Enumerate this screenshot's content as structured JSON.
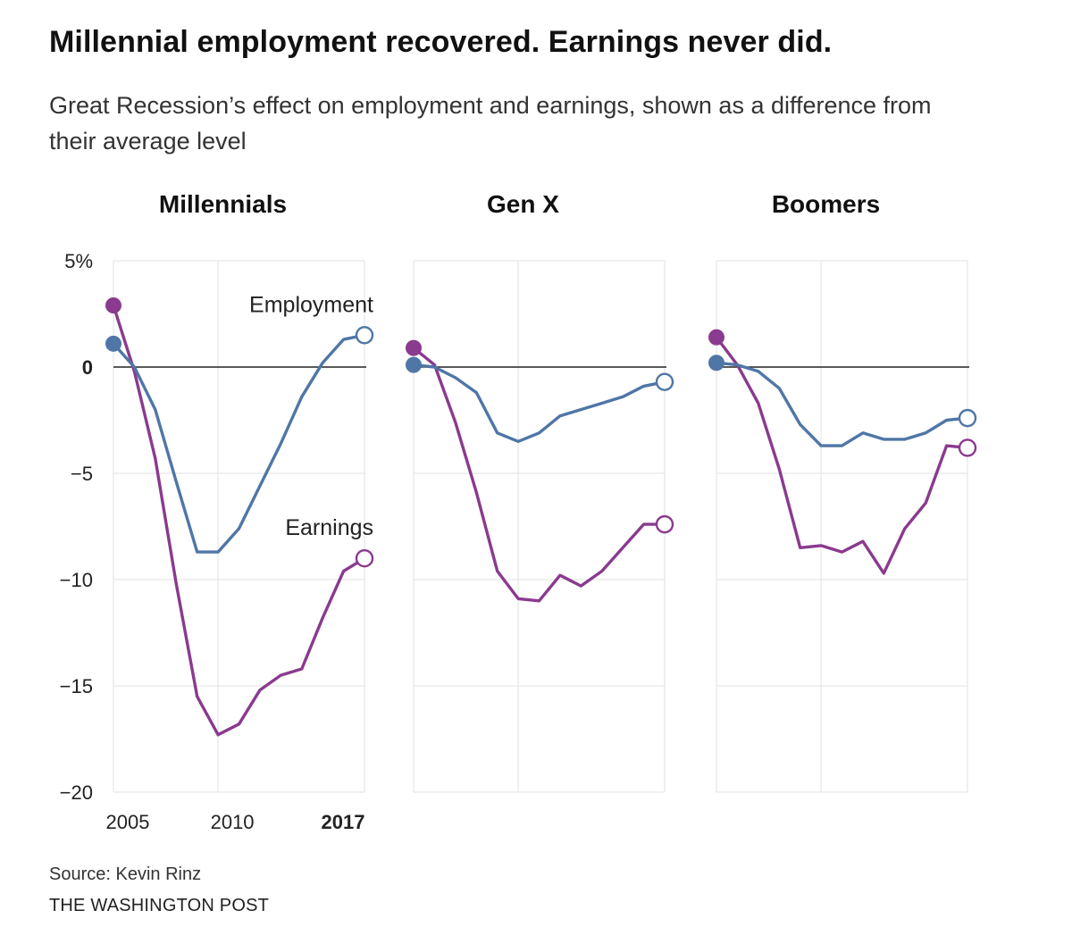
{
  "header": {
    "title": "Millennial employment recovered. Earnings never did.",
    "subtitle": "Great Recession’s effect on employment and earnings, shown as a difference from their average level"
  },
  "footer": {
    "source": "Source: Kevin Rinz",
    "brand": "THE WASHINGTON POST"
  },
  "colors": {
    "employment": "#4f76a6",
    "earnings": "#8a3a8f",
    "grid": "#e6e6e6",
    "zero_line": "#222222"
  },
  "chart_data": {
    "type": "line",
    "title": "Millennial employment recovered. Earnings never did.",
    "subtitle": "Great Recession’s effect on employment and earnings, shown as a difference from their average level",
    "ylim": [
      -20,
      5
    ],
    "yticks": [
      {
        "value": 5,
        "label": "5%",
        "bold": false
      },
      {
        "value": 0,
        "label": "0",
        "bold": true
      },
      {
        "value": -5,
        "label": "−5",
        "bold": false
      },
      {
        "value": -10,
        "label": "−10",
        "bold": false
      },
      {
        "value": -15,
        "label": "−15",
        "bold": false
      },
      {
        "value": -20,
        "label": "−20",
        "bold": false
      }
    ],
    "xlim": [
      2005,
      2017
    ],
    "xticks": [
      {
        "value": 2005,
        "label": "2005",
        "bold": false
      },
      {
        "value": 2010,
        "label": "2010",
        "bold": false
      },
      {
        "value": 2017,
        "label": "2017",
        "bold": true
      }
    ],
    "x": [
      2005,
      2006,
      2007,
      2008,
      2009,
      2010,
      2011,
      2012,
      2013,
      2014,
      2015,
      2016,
      2017
    ],
    "series_labels": {
      "employment": "Employment",
      "earnings": "Earnings"
    },
    "panels": [
      {
        "name": "Millennials",
        "series": [
          {
            "name": "Employment",
            "values": [
              1.1,
              0.0,
              -2.0,
              -5.4,
              -8.7,
              -8.7,
              -7.6,
              -5.6,
              -3.6,
              -1.4,
              0.2,
              1.3,
              1.5
            ]
          },
          {
            "name": "Earnings",
            "values": [
              2.9,
              -0.2,
              -4.3,
              -10.2,
              -15.5,
              -17.3,
              -16.8,
              -15.2,
              -14.5,
              -14.2,
              -11.8,
              -9.6,
              -9.0
            ]
          }
        ]
      },
      {
        "name": "Gen X",
        "series": [
          {
            "name": "Employment",
            "values": [
              0.1,
              0.0,
              -0.5,
              -1.2,
              -3.1,
              -3.5,
              -3.1,
              -2.3,
              -2.0,
              -1.7,
              -1.4,
              -0.9,
              -0.7
            ]
          },
          {
            "name": "Earnings",
            "values": [
              0.9,
              0.1,
              -2.6,
              -5.9,
              -9.6,
              -10.9,
              -11.0,
              -9.8,
              -10.3,
              -9.6,
              -8.5,
              -7.4,
              -7.4
            ]
          }
        ]
      },
      {
        "name": "Boomers",
        "series": [
          {
            "name": "Employment",
            "values": [
              0.2,
              0.1,
              -0.2,
              -1.0,
              -2.7,
              -3.7,
              -3.7,
              -3.1,
              -3.4,
              -3.4,
              -3.1,
              -2.5,
              -2.4
            ]
          },
          {
            "name": "Earnings",
            "values": [
              1.4,
              0.1,
              -1.7,
              -4.8,
              -8.5,
              -8.4,
              -8.7,
              -8.2,
              -9.7,
              -7.6,
              -6.4,
              -3.7,
              -3.8
            ]
          }
        ]
      }
    ]
  }
}
